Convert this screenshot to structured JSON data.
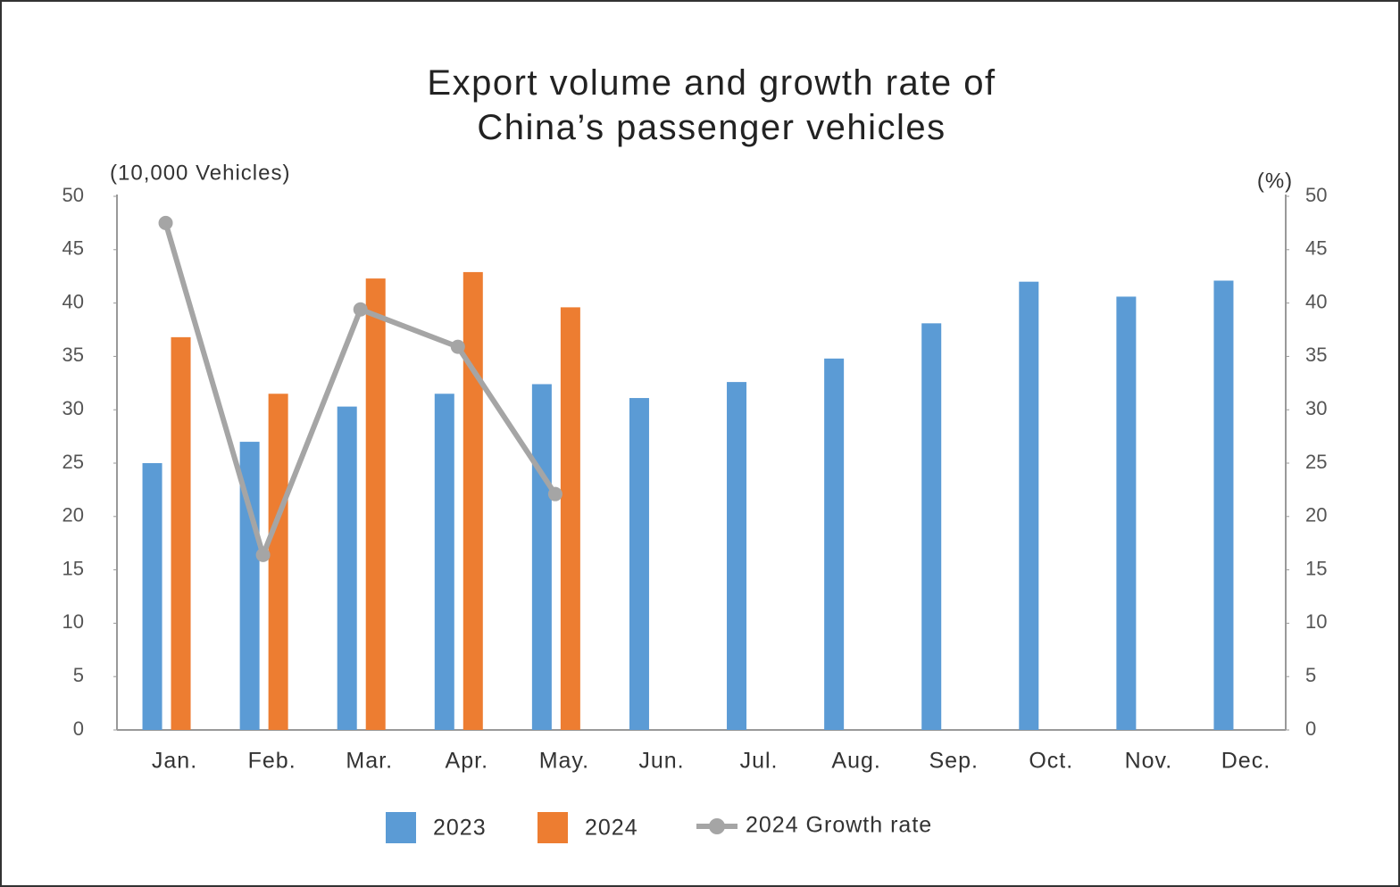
{
  "chart_data": {
    "type": "bar",
    "title": "Export volume and growth rate of China’s passenger vehicles",
    "y_label": "(10,000 Vehicles)",
    "y2_label": "(%)",
    "categories": [
      "Jan.",
      "Feb.",
      "Mar.",
      "Apr.",
      "May.",
      "Jun.",
      "Jul.",
      "Aug.",
      "Sep.",
      "Oct.",
      "Nov.",
      "Dec."
    ],
    "series": [
      {
        "name": "2023",
        "color": "#5b9bd5",
        "type": "bar",
        "values": [
          25,
          27,
          30.3,
          31.5,
          32.4,
          31.1,
          32.6,
          34.8,
          38.1,
          42,
          40.6,
          42.1
        ]
      },
      {
        "name": "2024",
        "color": "#ed7d31",
        "type": "bar",
        "values": [
          36.8,
          31.5,
          42.3,
          42.9,
          39.6,
          null,
          null,
          null,
          null,
          null,
          null,
          null
        ]
      },
      {
        "name": "2024 Growth rate",
        "color": "#a5a5a5",
        "type": "line",
        "axis": "y2",
        "values": [
          47.5,
          16.4,
          39.4,
          35.9,
          22.1,
          null,
          null,
          null,
          null,
          null,
          null,
          null
        ]
      }
    ],
    "ylim": [
      0,
      50
    ],
    "yticks": [
      0,
      5,
      10,
      15,
      20,
      25,
      30,
      35,
      40,
      45,
      50
    ],
    "y2lim": [
      0,
      50
    ],
    "y2ticks": [
      0,
      5,
      10,
      15,
      20,
      25,
      30,
      35,
      40,
      45,
      50
    ],
    "grid": false,
    "legend": "bottom"
  }
}
